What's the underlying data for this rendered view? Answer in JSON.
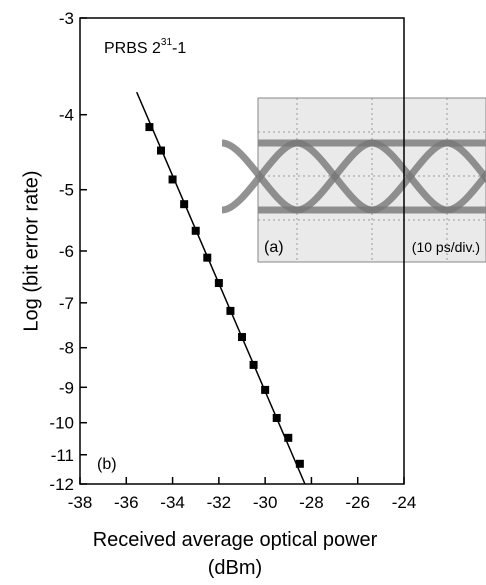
{
  "chart_data": {
    "type": "scatter",
    "ylabel": "Log (bit error rate)",
    "xlabel": "Received average optical power (dBm)",
    "yscale": "log-of-negative",
    "xlim": [
      -38,
      -24
    ],
    "xticks": [
      -38,
      -36,
      -34,
      -32,
      -30,
      -28,
      -26,
      -24
    ],
    "ylim": [
      -3,
      -12
    ],
    "yticks": [
      -3,
      -4,
      -5,
      -6,
      -7,
      -8,
      -9,
      -10,
      -11,
      -12
    ],
    "series": [
      {
        "color": "#000000",
        "marker": "square",
        "x": [
          -35,
          -34.5,
          -34,
          -33.5,
          -33,
          -32.5,
          -32,
          -31.5,
          -31,
          -30.5,
          -30,
          -29.5,
          -29,
          -28.5
        ],
        "values": [
          -4.15,
          -4.45,
          -4.85,
          -5.22,
          -5.65,
          -6.12,
          -6.6,
          -7.17,
          -7.75,
          -8.42,
          -9.07,
          -9.86,
          -10.46,
          -11.3
        ]
      },
      {
        "color": "#000000",
        "marker": "line",
        "x": [
          -35.55,
          -28.28
        ],
        "values": [
          -3.74,
          -12
        ]
      }
    ],
    "annotations": {
      "prbs": [
        "PRBS 2",
        "31",
        "-1"
      ],
      "panel_b": "(b)",
      "panel_a": "(a)",
      "inset_scale": "(10 ps/div.)"
    }
  }
}
